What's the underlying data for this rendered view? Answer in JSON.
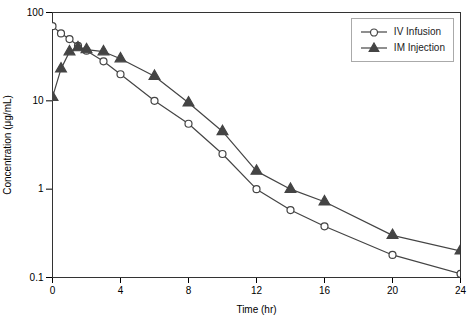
{
  "chart_data": {
    "type": "line",
    "xlabel": "Time (hr)",
    "ylabel": "Concentration (μg/mL)",
    "x": [
      0,
      0.5,
      1,
      1.5,
      2,
      3,
      4,
      6,
      8,
      10,
      12,
      14,
      16,
      20,
      24
    ],
    "series": [
      {
        "name": "IV Infusion",
        "color": "#444444",
        "marker": "circle-open",
        "values": [
          70,
          58,
          50,
          42,
          37,
          28,
          20,
          10,
          5.5,
          2.5,
          1.0,
          0.58,
          0.38,
          0.18,
          0.11
        ]
      },
      {
        "name": "IM Injection",
        "color": "#444444",
        "marker": "triangle",
        "values": [
          11,
          23,
          36,
          40,
          38,
          36,
          30,
          19,
          9.5,
          4.5,
          1.6,
          1.0,
          0.72,
          0.3,
          0.2
        ]
      }
    ],
    "xlim": [
      0,
      24
    ],
    "ylim": [
      0.1,
      100
    ],
    "xticks": [
      0,
      4,
      8,
      12,
      16,
      20,
      24
    ],
    "yticks": [
      0.1,
      1,
      10,
      100
    ],
    "log": "y",
    "grid": false,
    "legend": "upper right"
  }
}
